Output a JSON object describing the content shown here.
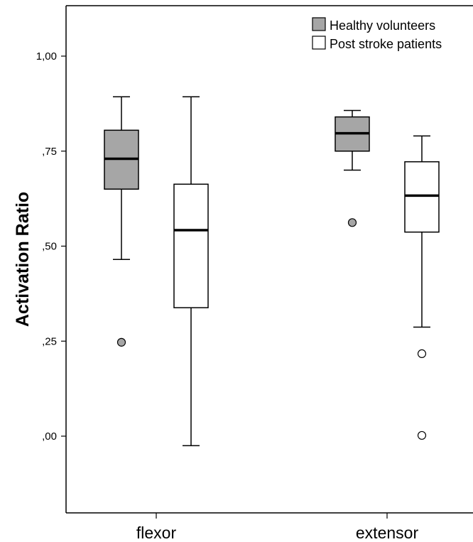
{
  "chart_data": {
    "type": "boxplot",
    "ylabel": "Activation Ratio",
    "ylim": [
      -0.2,
      1.13
    ],
    "yticks": [
      {
        "value": 1.0,
        "label": "1,00"
      },
      {
        "value": 0.75,
        "label": ",75"
      },
      {
        "value": 0.5,
        "label": ",50"
      },
      {
        "value": 0.25,
        "label": ",25"
      },
      {
        "value": 0.0,
        "label": ",00"
      }
    ],
    "categories": [
      "flexor",
      "extensor"
    ],
    "series": [
      {
        "name": "Healthy volunteers",
        "color": "#a6a6a6",
        "boxes": [
          {
            "category": "flexor",
            "whisker_low": 0.465,
            "q1": 0.65,
            "median": 0.73,
            "q3": 0.805,
            "whisker_high": 0.893,
            "outliers": [
              0.247
            ]
          },
          {
            "category": "extensor",
            "whisker_low": 0.7,
            "q1": 0.75,
            "median": 0.797,
            "q3": 0.84,
            "whisker_high": 0.857,
            "outliers": [
              0.562
            ]
          }
        ]
      },
      {
        "name": "Post stroke patients",
        "color": "#ffffff",
        "boxes": [
          {
            "category": "flexor",
            "whisker_low": -0.025,
            "q1": 0.338,
            "median": 0.542,
            "q3": 0.663,
            "whisker_high": 0.893,
            "outliers": []
          },
          {
            "category": "extensor",
            "whisker_low": 0.287,
            "q1": 0.537,
            "median": 0.633,
            "q3": 0.722,
            "whisker_high": 0.79,
            "outliers": [
              0.217,
              0.002
            ]
          }
        ]
      }
    ],
    "legend_position": "top-right"
  }
}
